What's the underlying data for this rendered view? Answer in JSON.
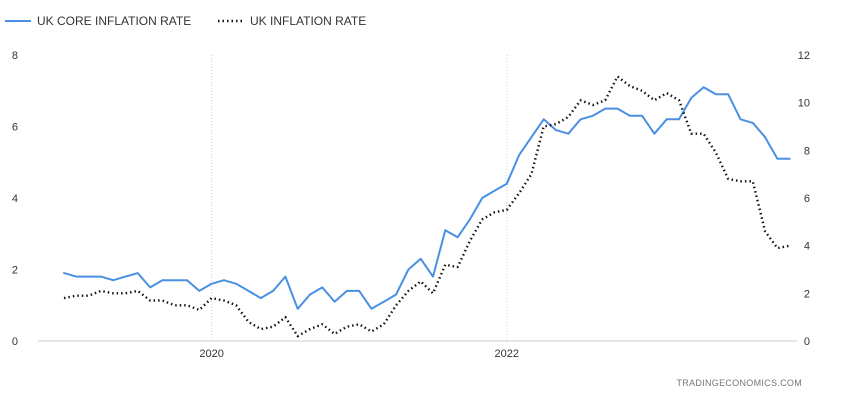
{
  "chart_data": {
    "type": "line",
    "source_credit": "TRADINGECONOMICS.COM",
    "x_tick_labels": [
      "2020",
      "2022"
    ],
    "x_tick_dates": [
      "2020-01",
      "2022-01"
    ],
    "left_axis": {
      "ticks": [
        "0",
        "2",
        "4",
        "6",
        "8"
      ],
      "ylim": [
        0,
        8
      ]
    },
    "right_axis": {
      "ticks": [
        "0",
        "2",
        "4",
        "6",
        "8",
        "10",
        "12"
      ],
      "ylim": [
        0,
        12
      ]
    },
    "grid": true,
    "legend_position": "top-left",
    "x": [
      "2019-01",
      "2019-02",
      "2019-03",
      "2019-04",
      "2019-05",
      "2019-06",
      "2019-07",
      "2019-08",
      "2019-09",
      "2019-10",
      "2019-11",
      "2019-12",
      "2020-01",
      "2020-02",
      "2020-03",
      "2020-04",
      "2020-05",
      "2020-06",
      "2020-07",
      "2020-08",
      "2020-09",
      "2020-10",
      "2020-11",
      "2020-12",
      "2021-01",
      "2021-02",
      "2021-03",
      "2021-04",
      "2021-05",
      "2021-06",
      "2021-07",
      "2021-08",
      "2021-09",
      "2021-10",
      "2021-11",
      "2021-12",
      "2022-01",
      "2022-02",
      "2022-03",
      "2022-04",
      "2022-05",
      "2022-06",
      "2022-07",
      "2022-08",
      "2022-09",
      "2022-10",
      "2022-11",
      "2022-12",
      "2023-01",
      "2023-02",
      "2023-03",
      "2023-04",
      "2023-05",
      "2023-06",
      "2023-07",
      "2023-08",
      "2023-09",
      "2023-10",
      "2023-11",
      "2023-12"
    ],
    "series": [
      {
        "name": "UK CORE INFLATION RATE",
        "axis": "left",
        "color": "#4a90e2",
        "style": "solid",
        "values": [
          1.9,
          1.8,
          1.8,
          1.8,
          1.7,
          1.8,
          1.9,
          1.5,
          1.7,
          1.7,
          1.7,
          1.4,
          1.6,
          1.7,
          1.6,
          1.4,
          1.2,
          1.4,
          1.8,
          0.9,
          1.3,
          1.5,
          1.1,
          1.4,
          1.4,
          0.9,
          1.1,
          1.3,
          2.0,
          2.3,
          1.8,
          3.1,
          2.9,
          3.4,
          4.0,
          4.2,
          4.4,
          5.2,
          5.7,
          6.2,
          5.9,
          5.8,
          6.2,
          6.3,
          6.5,
          6.5,
          6.3,
          6.3,
          5.8,
          6.2,
          6.2,
          6.8,
          7.1,
          6.9,
          6.9,
          6.2,
          6.1,
          5.7,
          5.1,
          5.1
        ]
      },
      {
        "name": "UK INFLATION RATE",
        "axis": "right",
        "color": "#111111",
        "style": "dotted",
        "values": [
          1.8,
          1.9,
          1.9,
          2.1,
          2.0,
          2.0,
          2.1,
          1.7,
          1.7,
          1.5,
          1.5,
          1.3,
          1.8,
          1.7,
          1.5,
          0.8,
          0.5,
          0.6,
          1.0,
          0.2,
          0.5,
          0.7,
          0.3,
          0.6,
          0.7,
          0.4,
          0.7,
          1.5,
          2.1,
          2.5,
          2.0,
          3.2,
          3.1,
          4.2,
          5.1,
          5.4,
          5.5,
          6.2,
          7.0,
          9.0,
          9.1,
          9.4,
          10.1,
          9.9,
          10.1,
          11.1,
          10.7,
          10.5,
          10.1,
          10.4,
          10.1,
          8.7,
          8.7,
          7.9,
          6.8,
          6.7,
          6.7,
          4.6,
          3.9,
          4.0
        ]
      }
    ]
  }
}
